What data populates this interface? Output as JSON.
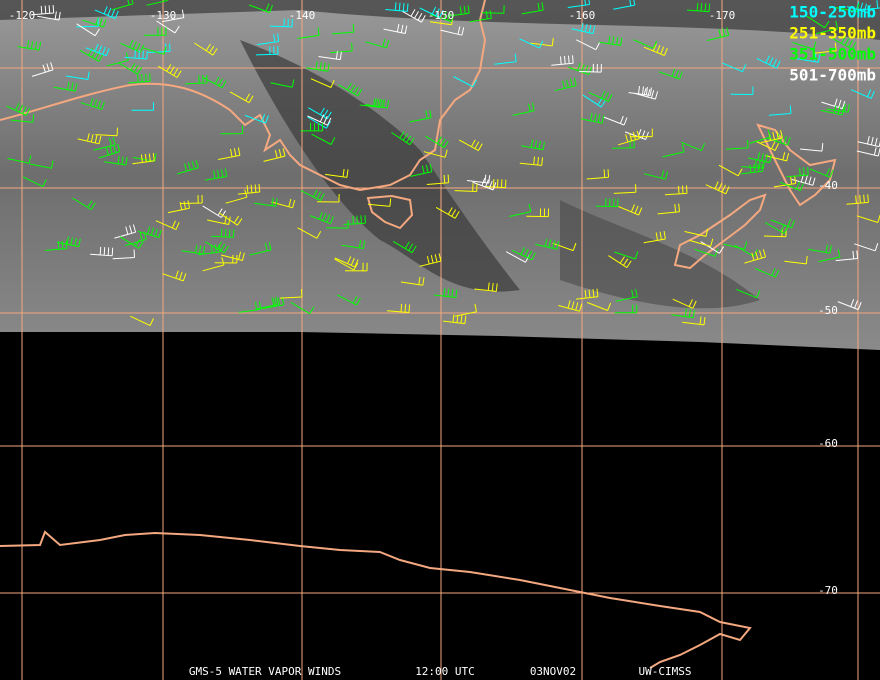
{
  "map": {
    "longitude_labels": [
      "-120",
      "-130",
      "-140",
      "-150",
      "-160",
      "-170"
    ],
    "latitude_labels": [
      "-40",
      "-50",
      "-60",
      "-70"
    ],
    "legend": [
      {
        "label": "150-250mb",
        "color": "#00ffff"
      },
      {
        "label": "251-350mb",
        "color": "#ffff00"
      },
      {
        "label": "351-500mb",
        "color": "#00ff00"
      },
      {
        "label": "501-700mb",
        "color": "#ffffff"
      }
    ],
    "footer": [
      "GMS-5 WATER VAPOR WINDS",
      "12:00 UTC",
      "03NOV02",
      "UW-CIMSS"
    ]
  }
}
